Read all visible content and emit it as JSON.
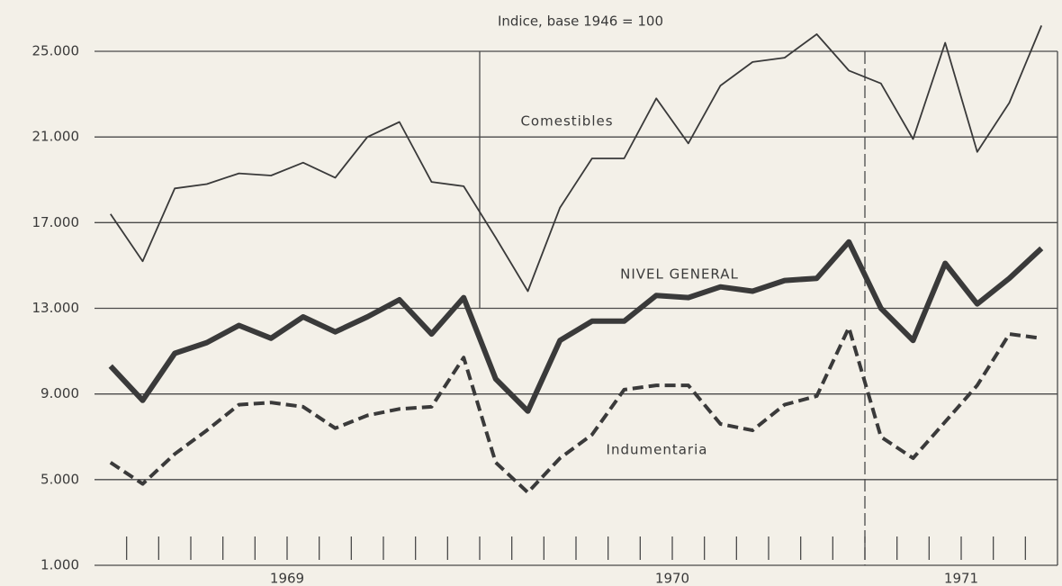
{
  "chart_data": {
    "type": "line",
    "title": "Indice, base 1946 = 100",
    "categories": [
      null,
      null,
      null,
      null,
      null,
      null,
      "1969",
      null,
      null,
      null,
      null,
      null,
      null,
      null,
      null,
      null,
      null,
      null,
      "1970",
      null,
      null,
      null,
      null,
      null,
      null,
      null,
      null,
      "1971",
      null,
      null
    ],
    "series": [
      {
        "name": "Comestibles",
        "color": "#3a3a3a",
        "line_style": "thin",
        "values": [
          17400,
          15200,
          18600,
          18800,
          19300,
          19200,
          19800,
          19100,
          21000,
          21700,
          18900,
          18700,
          16300,
          13800,
          17700,
          20000,
          20000,
          22800,
          20700,
          23400,
          24500,
          24700,
          25800,
          24100,
          23500,
          20900,
          25400,
          20300,
          22600,
          26200
        ]
      },
      {
        "name": "NIVEL GENERAL",
        "color": "#3a3a3a",
        "line_style": "bold",
        "values": [
          10300,
          8700,
          10900,
          11400,
          12200,
          11600,
          12600,
          11900,
          12600,
          13400,
          11800,
          13500,
          9700,
          8200,
          11500,
          12400,
          12400,
          13600,
          13500,
          14000,
          13800,
          14300,
          14400,
          16100,
          13000,
          11500,
          15100,
          13200,
          14400,
          15800
        ]
      },
      {
        "name": "Indumentaria",
        "color": "#3a3a3a",
        "line_style": "dashed",
        "values": [
          5800,
          4800,
          6200,
          7300,
          8500,
          8600,
          8400,
          7400,
          8000,
          8300,
          8400,
          10700,
          5800,
          4400,
          6000,
          7100,
          9200,
          9400,
          9400,
          7600,
          7300,
          8500,
          8900,
          12100,
          7000,
          6000,
          7700,
          9400,
          11800,
          11600
        ]
      }
    ],
    "ylim": [
      1000,
      25000
    ],
    "yticks": [
      {
        "value": 1000,
        "label": "1.000"
      },
      {
        "value": 5000,
        "label": "5.000"
      },
      {
        "value": 9000,
        "label": "9.000"
      },
      {
        "value": 13000,
        "label": "13.000"
      },
      {
        "value": 17000,
        "label": "17.000"
      },
      {
        "value": 21000,
        "label": "21.000"
      },
      {
        "value": 25000,
        "label": "25.000"
      }
    ],
    "grid": true
  }
}
